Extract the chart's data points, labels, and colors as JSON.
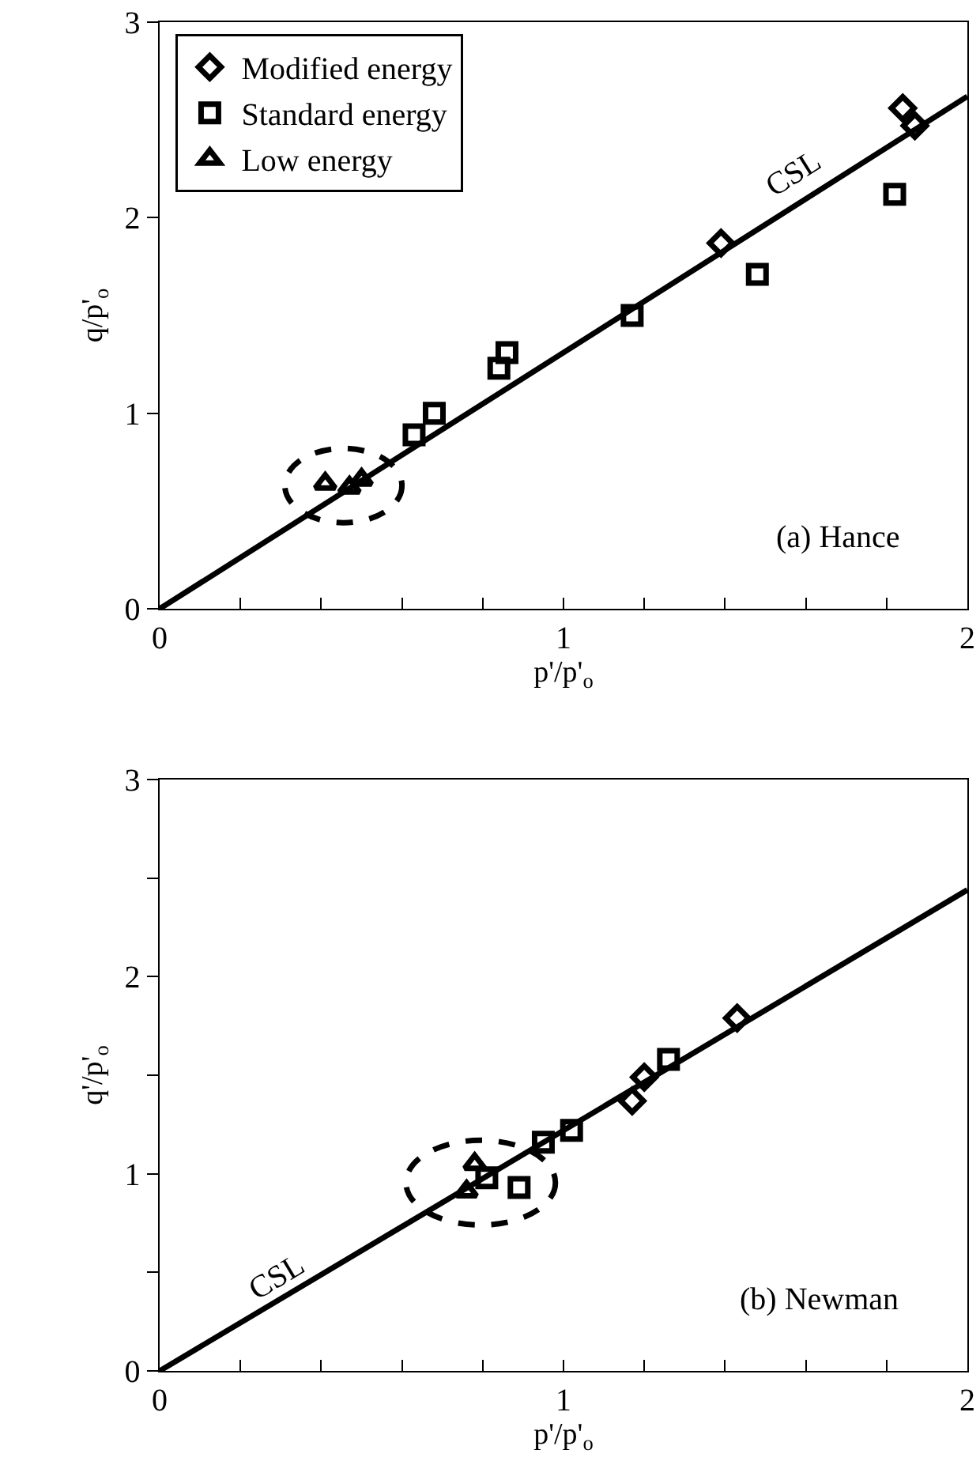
{
  "chart_data": [
    {
      "type": "scatter",
      "xlabel": "p'/p'$_{o}$",
      "ylabel": "q/p'$_{o}$",
      "xlim": [
        0,
        2
      ],
      "ylim": [
        0,
        3
      ],
      "xticks": [
        0,
        {
          "value": 0.2,
          "label": null
        },
        {
          "value": 0.4,
          "label": null
        },
        {
          "value": 0.6,
          "label": null
        },
        {
          "value": 0.8,
          "label": null
        },
        1,
        {
          "value": 1.2,
          "label": null
        },
        {
          "value": 1.4,
          "label": null
        },
        {
          "value": 1.6,
          "label": null
        },
        {
          "value": 1.8,
          "label": null
        },
        2
      ],
      "yticks": [
        0,
        1,
        2,
        3
      ],
      "grid": false,
      "legend": "top left",
      "series": [
        {
          "name": "Modified energy",
          "color": "#000000",
          "marker": "diamond",
          "x": [
            1.39,
            1.84,
            1.87
          ],
          "values": [
            1.87,
            2.56,
            2.47
          ]
        },
        {
          "name": "Standard energy",
          "color": "#000000",
          "marker": "square",
          "x": [
            1.82,
            1.48,
            1.17,
            0.86,
            0.84,
            0.68,
            0.63
          ],
          "values": [
            2.12,
            1.71,
            1.5,
            1.31,
            1.23,
            1.0,
            0.89
          ]
        },
        {
          "name": "Low energy",
          "color": "#000000",
          "marker": "triangle",
          "x": [
            0.41,
            0.47,
            0.5
          ],
          "values": [
            0.64,
            0.62,
            0.66
          ]
        },
        {
          "type": "line",
          "color": "#000000",
          "marker": "none",
          "x": [
            0,
            2
          ],
          "values": [
            0,
            2.62
          ]
        }
      ],
      "annotations": [
        "CSL",
        "(a) Hance"
      ]
    },
    {
      "type": "scatter",
      "xlabel": "p'/p'$_{o}$",
      "ylabel": "q'/p'$_{o}$",
      "xlim": [
        0,
        2
      ],
      "ylim": [
        0,
        3
      ],
      "xticks": [
        0,
        {
          "value": 0.2,
          "label": null
        },
        {
          "value": 0.4,
          "label": null
        },
        {
          "value": 0.6,
          "label": null
        },
        {
          "value": 0.8,
          "label": null
        },
        1,
        {
          "value": 1.2,
          "label": null
        },
        {
          "value": 1.4,
          "label": null
        },
        {
          "value": 1.6,
          "label": null
        },
        {
          "value": 1.8,
          "label": null
        },
        2
      ],
      "yticks": [
        0,
        {
          "value": 0.5,
          "label": null
        },
        1,
        {
          "value": 1.5,
          "label": null
        },
        2,
        {
          "value": 2.5,
          "label": null
        },
        3
      ],
      "grid": false,
      "series": [
        {
          "color": "#000000",
          "marker": "diamond",
          "x": [
            1.43,
            1.2,
            1.17
          ],
          "values": [
            1.79,
            1.49,
            1.37
          ]
        },
        {
          "color": "#000000",
          "marker": "square",
          "x": [
            1.26,
            1.02,
            0.95,
            0.89,
            0.81
          ],
          "values": [
            1.58,
            1.22,
            1.16,
            0.93,
            0.98
          ]
        },
        {
          "color": "#000000",
          "marker": "triangle",
          "x": [
            0.78,
            0.76
          ],
          "values": [
            1.05,
            0.91
          ]
        },
        {
          "type": "line",
          "color": "#000000",
          "marker": "none",
          "x": [
            0,
            2
          ],
          "values": [
            0,
            2.44
          ]
        }
      ],
      "annotations": [
        "CSL",
        "(b) Newman"
      ]
    }
  ]
}
